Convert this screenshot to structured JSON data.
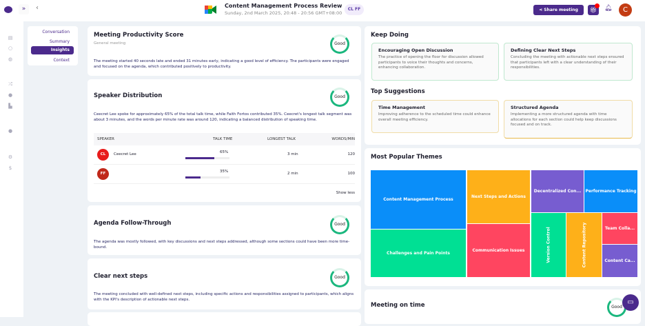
{
  "header": {
    "title": "Content Management Process Review",
    "subtitle": "Sunday, 2nd March 2025, 20:48 - 20:56 GMT+08:00",
    "participants": "CL FF",
    "share_label": "Share meeting",
    "avatar": "C",
    "expand": "»",
    "back": "‹"
  },
  "nav": {
    "items": [
      "Conversation",
      "Summary",
      "Insights",
      "Context"
    ],
    "active": "Insights"
  },
  "productivity": {
    "title": "Meeting Productivity Score",
    "subtitle": "General meeting",
    "badge": "Good",
    "text": "The meeting started 40 seconds late and ended 31 minutes early, indicating a good level of efficiency. The participants were engaged and focused on the agenda, which contributed positively to productivity."
  },
  "speaker": {
    "title": "Speaker Distribution",
    "badge": "Good",
    "text": "Ceecret Lee spoke for approximately 65% of the total talk time, while Faith Fortos contributed 35%. Ceecret's longest talk segment was about 3 minutes, and the words per minute rate was around 120, indicating a balanced distribution of speaking time.",
    "columns": [
      "SPEAKER",
      "TALK TIME",
      "LONGEST TALK",
      "WORDS/MIN"
    ],
    "rows": [
      {
        "initials": "CL",
        "name": "Ceecret Lee",
        "color": "#e81c1c",
        "talk": "65%",
        "talk_pct": 65,
        "longest": "3 min",
        "wpm": "120"
      },
      {
        "initials": "FF",
        "name": "",
        "color": "#c0281a",
        "talk": "35%",
        "talk_pct": 35,
        "longest": "2 min",
        "wpm": "100"
      }
    ],
    "show_less": "Show less"
  },
  "agenda": {
    "title": "Agenda Follow-Through",
    "badge": "Good",
    "text": "The agenda was mostly followed, with key discussions and next steps addressed, although some sections could have been more time-bound."
  },
  "next_steps": {
    "title": "Clear next steps",
    "badge": "Good",
    "text": "The meeting concluded with well-defined next steps, including specific actions and responsibilities assigned to participants, which aligns with the KPI's description of actionable next steps."
  },
  "keep_doing": {
    "title": "Keep Doing",
    "items": [
      {
        "title": "Encouraging Open Discussion",
        "text": "The practice of opening the floor for discussion allowed participants to voice their thoughts and concerns, enhancing collaboration."
      },
      {
        "title": "Defining Clear Next Steps",
        "text": "Concluding the meeting with actionable next steps ensured that participants left with a clear understanding of their responsibilities."
      }
    ]
  },
  "suggestions": {
    "title": "Top Suggestions",
    "items": [
      {
        "title": "Time Management",
        "text": "Improving adherence to the scheduled time could enhance overall meeting efficiency."
      },
      {
        "title": "Structured Agenda",
        "text": "Implementing a more structured agenda with time allocations for each section could help keep discussions focused and on track."
      }
    ]
  },
  "themes": {
    "title": "Most Popular Themes",
    "items": [
      {
        "name": "Content Management Process",
        "color": "#0a8ef9"
      },
      {
        "name": "Challenges and Pain Points",
        "color": "#00e094"
      },
      {
        "name": "Next Steps and Actions",
        "color": "#feb019"
      },
      {
        "name": "Communication Issues",
        "color": "#ff4560"
      },
      {
        "name": "Decentralized Con...",
        "color": "#775dd0"
      },
      {
        "name": "Performance Tracking",
        "color": "#0a8ef9"
      },
      {
        "name": "Version Control",
        "color": "#00e094"
      },
      {
        "name": "Content Repository",
        "color": "#feb019"
      },
      {
        "name": "Team Colla...",
        "color": "#ff4560"
      },
      {
        "name": "Content Ca...",
        "color": "#775dd0"
      }
    ]
  },
  "on_time": {
    "title": "Meeting on time",
    "badge": "Good"
  }
}
